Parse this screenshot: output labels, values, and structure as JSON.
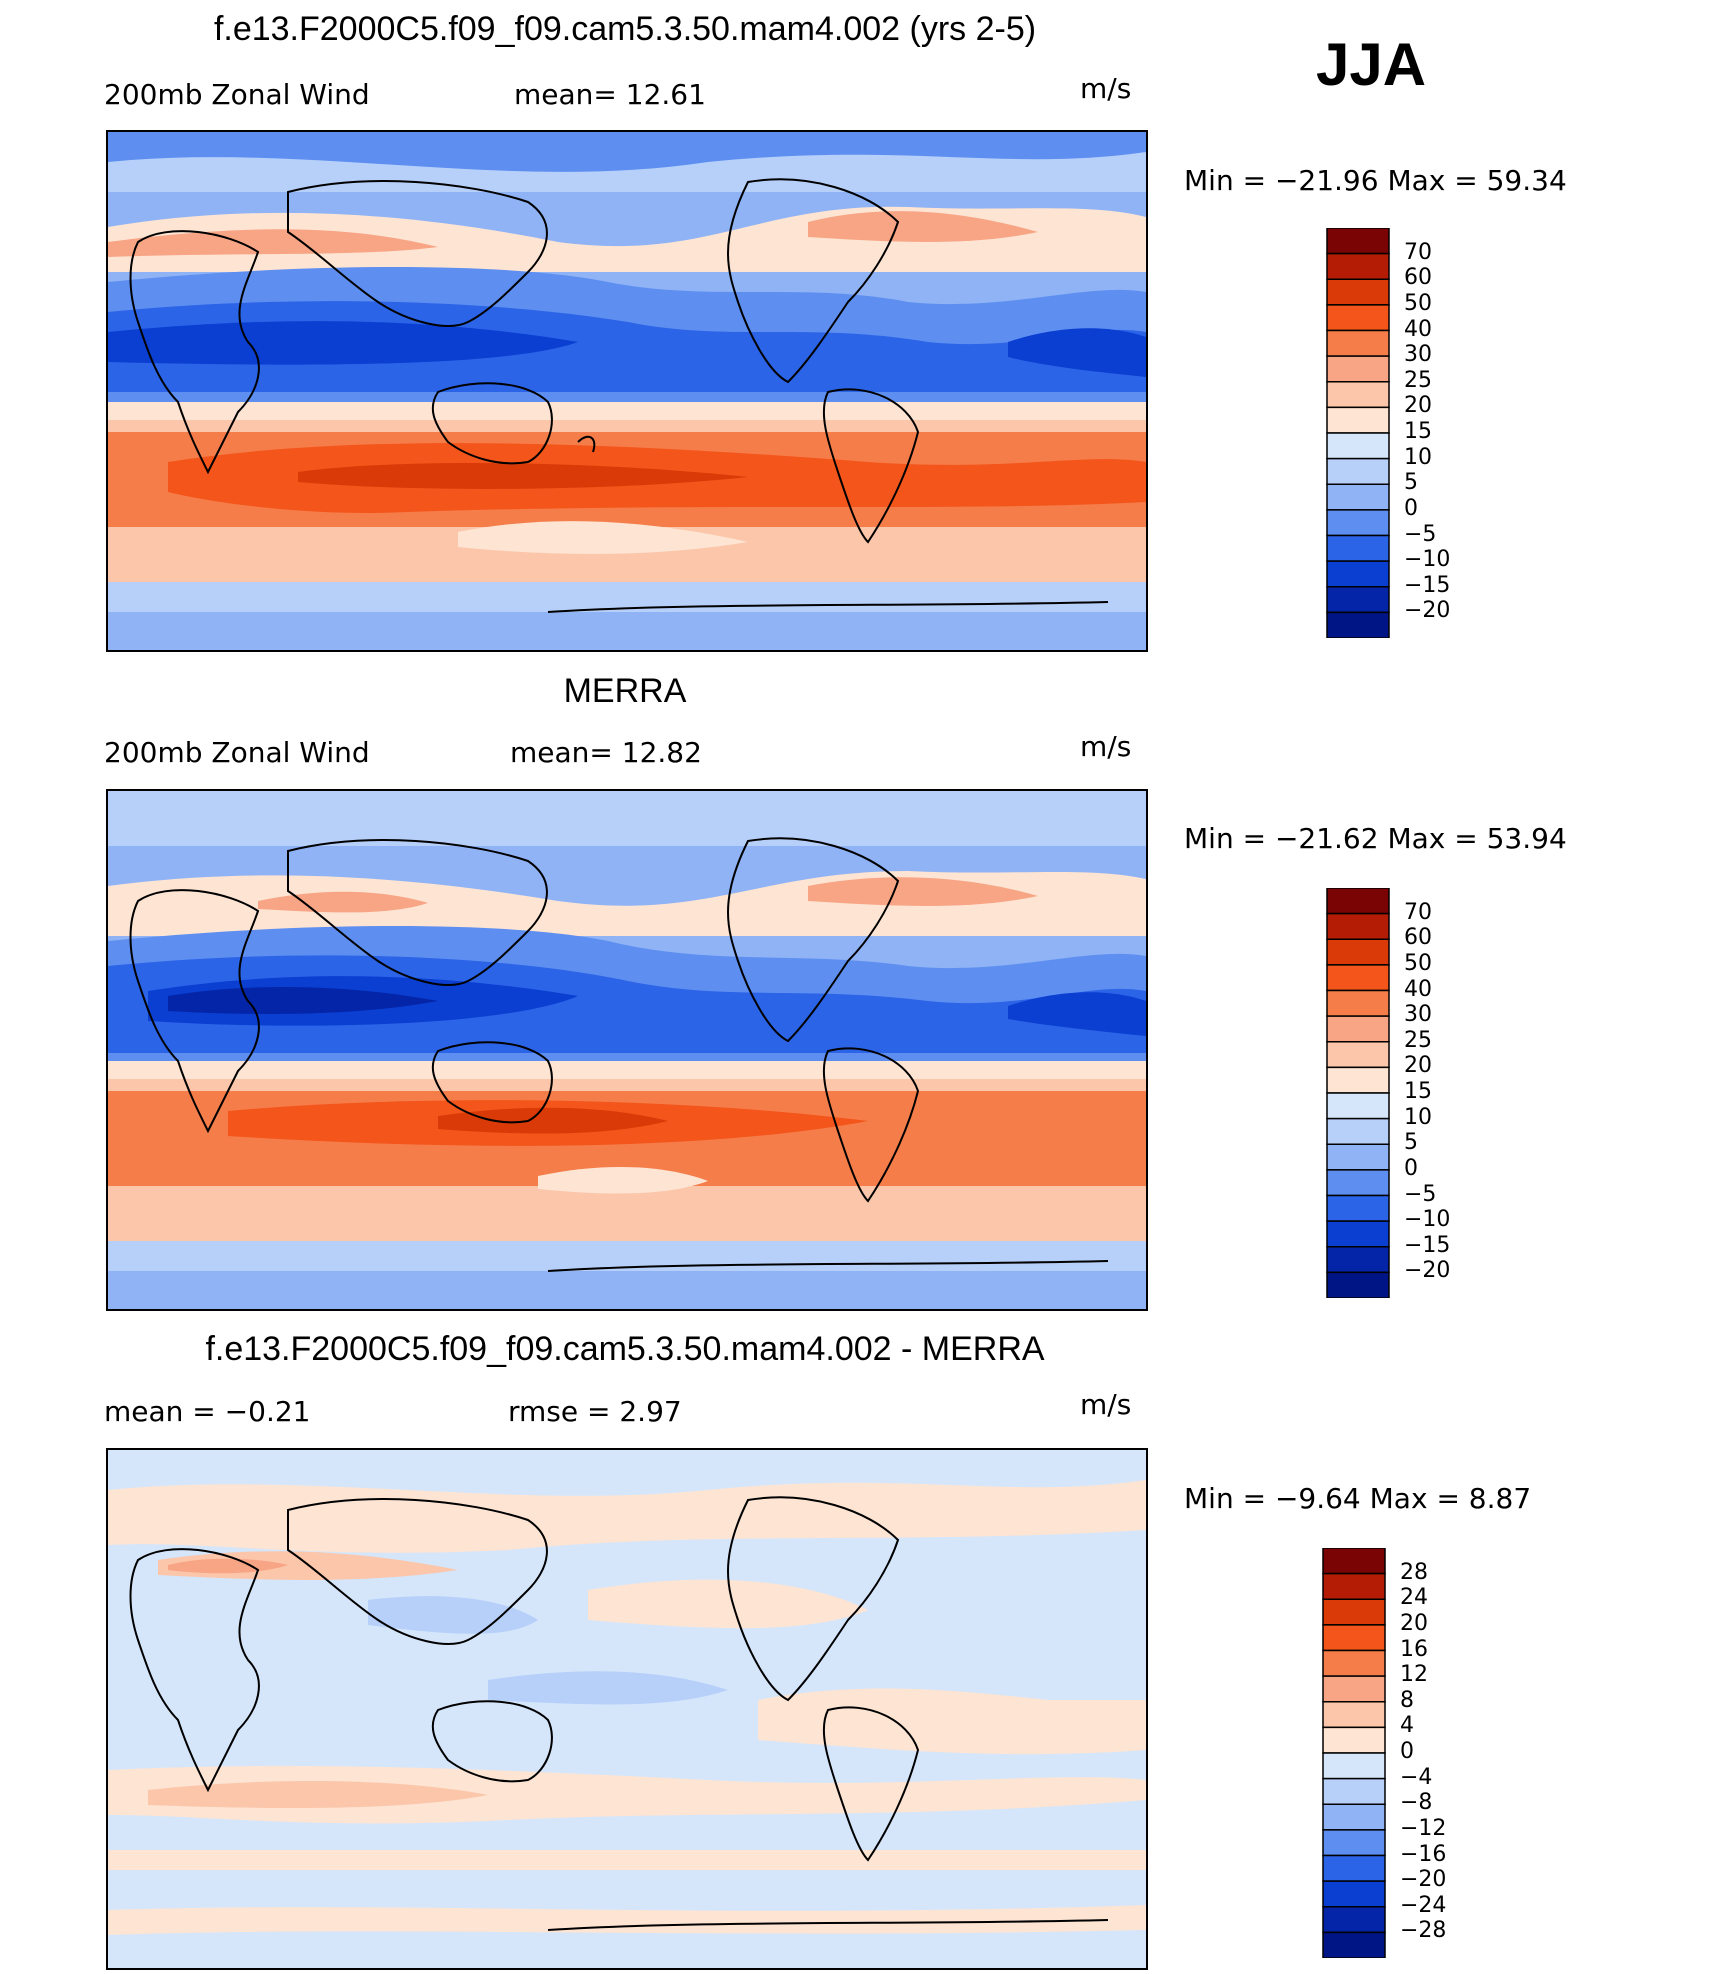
{
  "season": "JJA",
  "panels": [
    {
      "title": "f.e13.F2000C5.f09_f09.cam5.3.50.mam4.002 (yrs 2-5)",
      "left_label": "200mb  Zonal  Wind",
      "middle_label": "mean=   12.61",
      "units": "m/s",
      "minmax": "Min  =  −21.96  Max  =    59.34"
    },
    {
      "title": "MERRA",
      "left_label": "200mb  Zonal  Wind",
      "middle_label": "mean=   12.82",
      "units": "m/s",
      "minmax": "Min  =  −21.62  Max  =    53.94"
    },
    {
      "title": "f.e13.F2000C5.f09_f09.cam5.3.50.mam4.002 - MERRA",
      "left_label": "mean  =    −0.21",
      "middle_label": "rmse  =     2.97",
      "units": "m/s",
      "minmax": "Min  =    −9.64  Max  =     8.87"
    }
  ],
  "chart_data": [
    {
      "type": "heatmap",
      "field": "200mb Zonal Wind",
      "units": "m/s",
      "mean": 12.61,
      "min": -21.96,
      "max": 59.34,
      "colorbar_ticks": [
        "70",
        "60",
        "50",
        "40",
        "30",
        "25",
        "20",
        "15",
        "10",
        "5",
        "0",
        "−5",
        "−10",
        "−15",
        "−20"
      ],
      "colorbar_colors": [
        "#7a0403",
        "#b51c06",
        "#d93a07",
        "#f4551b",
        "#f57d4a",
        "#f8a585",
        "#fbc6aa",
        "#fde4d3",
        "#d5e6fb",
        "#b6d0fa",
        "#8fb3f5",
        "#5e8ff0",
        "#2c64e8",
        "#0a3fd1",
        "#0425a8",
        "#001585"
      ]
    },
    {
      "type": "heatmap",
      "field": "200mb Zonal Wind",
      "units": "m/s",
      "mean": 12.82,
      "min": -21.62,
      "max": 53.94,
      "colorbar_ticks": [
        "70",
        "60",
        "50",
        "40",
        "30",
        "25",
        "20",
        "15",
        "10",
        "5",
        "0",
        "−5",
        "−10",
        "−15",
        "−20"
      ],
      "colorbar_colors": [
        "#7a0403",
        "#b51c06",
        "#d93a07",
        "#f4551b",
        "#f57d4a",
        "#f8a585",
        "#fbc6aa",
        "#fde4d3",
        "#d5e6fb",
        "#b6d0fa",
        "#8fb3f5",
        "#5e8ff0",
        "#2c64e8",
        "#0a3fd1",
        "#0425a8",
        "#001585"
      ]
    },
    {
      "type": "heatmap",
      "field": "difference",
      "units": "m/s",
      "mean": -0.21,
      "rmse": 2.97,
      "min": -9.64,
      "max": 8.87,
      "colorbar_ticks": [
        "28",
        "24",
        "20",
        "16",
        "12",
        "8",
        "4",
        "0",
        "−4",
        "−8",
        "−12",
        "−16",
        "−20",
        "−24",
        "−28"
      ],
      "colorbar_colors": [
        "#7a0403",
        "#b51c06",
        "#d93a07",
        "#f4551b",
        "#f57d4a",
        "#f8a585",
        "#fbc6aa",
        "#fde4d3",
        "#d5e6fb",
        "#b6d0fa",
        "#8fb3f5",
        "#5e8ff0",
        "#2c64e8",
        "#0a3fd1",
        "#0425a8",
        "#001585"
      ]
    }
  ]
}
